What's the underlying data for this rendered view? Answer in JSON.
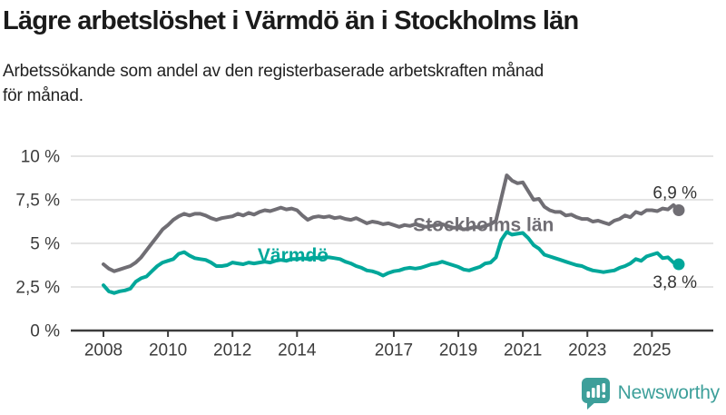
{
  "chart_data": {
    "type": "line",
    "title": "Lägre arbetslöshet i Värmdö än i Stockholms län",
    "subtitle_lines": [
      "Arbetssökande som andel av den registerbaserade arbetskraften månad",
      "för månad."
    ],
    "x_unit": "months",
    "x_start": "2008-01",
    "x_step_months": 2,
    "x_end": "2025-11",
    "ylim": [
      0,
      10
    ],
    "grid": true,
    "legend": "inline-labels",
    "colors": {
      "grid": "#dcdcdc",
      "axis": "#3c3c3c",
      "tick_text": "#3c3c3c",
      "value_label_text": "#333333"
    },
    "x_ticks": [
      {
        "year": 2008,
        "label": "2008"
      },
      {
        "year": 2010,
        "label": "2010"
      },
      {
        "year": 2012,
        "label": "2012"
      },
      {
        "year": 2014,
        "label": "2014"
      },
      {
        "year": 2017,
        "label": "2017"
      },
      {
        "year": 2019,
        "label": "2019"
      },
      {
        "year": 2021,
        "label": "2021"
      },
      {
        "year": 2023,
        "label": "2023"
      },
      {
        "year": 2025,
        "label": "2025"
      }
    ],
    "y_ticks": [
      {
        "value": 0,
        "label": "0 %"
      },
      {
        "value": 2.5,
        "label": "2,5 %"
      },
      {
        "value": 5,
        "label": "5 %"
      },
      {
        "value": 7.5,
        "label": "7,5 %"
      },
      {
        "value": 10,
        "label": "10 %"
      }
    ],
    "series": [
      {
        "name": "Stockholms län",
        "color": "#706e74",
        "end_label": "6,9 %",
        "end_label_side": "above",
        "label_anchor": {
          "year": 2019.78,
          "value": 5.7,
          "align": "middle"
        },
        "values": [
          3.8,
          3.55,
          3.4,
          3.5,
          3.6,
          3.7,
          3.9,
          4.2,
          4.6,
          5.0,
          5.4,
          5.8,
          6.05,
          6.35,
          6.55,
          6.7,
          6.6,
          6.7,
          6.7,
          6.6,
          6.45,
          6.35,
          6.45,
          6.5,
          6.55,
          6.7,
          6.6,
          6.75,
          6.65,
          6.8,
          6.9,
          6.85,
          6.95,
          7.05,
          6.95,
          7.0,
          6.9,
          6.6,
          6.35,
          6.5,
          6.55,
          6.5,
          6.55,
          6.45,
          6.5,
          6.4,
          6.35,
          6.45,
          6.3,
          6.15,
          6.25,
          6.2,
          6.1,
          6.15,
          6.05,
          5.95,
          6.05,
          6.0,
          6.1,
          6.0,
          5.95,
          6.0,
          6.05,
          6.1,
          6.0,
          5.9,
          5.9,
          5.8,
          5.85,
          5.95,
          5.9,
          6.0,
          6.1,
          6.3,
          7.6,
          8.9,
          8.6,
          8.45,
          8.5,
          8.0,
          7.5,
          7.55,
          7.1,
          6.9,
          6.8,
          6.8,
          6.6,
          6.65,
          6.5,
          6.4,
          6.4,
          6.25,
          6.3,
          6.2,
          6.1,
          6.3,
          6.4,
          6.6,
          6.5,
          6.8,
          6.7,
          6.9,
          6.9,
          6.85,
          7.0,
          6.95,
          7.2,
          6.9
        ]
      },
      {
        "name": "Värmdö",
        "color": "#00a79a",
        "end_label": "3,8 %",
        "end_label_side": "below",
        "label_anchor": {
          "year": 2012.78,
          "value": 3.95,
          "align": "start"
        },
        "values": [
          2.6,
          2.25,
          2.15,
          2.25,
          2.3,
          2.4,
          2.8,
          3.0,
          3.1,
          3.4,
          3.7,
          3.9,
          4.0,
          4.1,
          4.4,
          4.5,
          4.3,
          4.15,
          4.1,
          4.05,
          3.9,
          3.7,
          3.7,
          3.75,
          3.9,
          3.85,
          3.8,
          3.9,
          3.85,
          3.9,
          3.95,
          3.9,
          4.0,
          4.05,
          4.0,
          4.1,
          4.1,
          4.15,
          4.1,
          4.2,
          4.15,
          4.2,
          4.2,
          4.15,
          4.1,
          3.95,
          3.85,
          3.7,
          3.6,
          3.45,
          3.4,
          3.3,
          3.15,
          3.3,
          3.4,
          3.45,
          3.55,
          3.6,
          3.55,
          3.6,
          3.7,
          3.8,
          3.85,
          3.95,
          3.85,
          3.75,
          3.65,
          3.5,
          3.45,
          3.55,
          3.65,
          3.85,
          3.9,
          4.2,
          5.2,
          5.65,
          5.5,
          5.55,
          5.6,
          5.3,
          4.9,
          4.7,
          4.35,
          4.25,
          4.15,
          4.05,
          3.95,
          3.85,
          3.75,
          3.7,
          3.55,
          3.45,
          3.4,
          3.35,
          3.4,
          3.45,
          3.6,
          3.7,
          3.85,
          4.1,
          4.0,
          4.25,
          4.35,
          4.45,
          4.15,
          4.2,
          3.9,
          3.8
        ]
      }
    ]
  },
  "branding": {
    "name": "Newsworthy",
    "color": "#3d9f9a",
    "icon": "bar-chart-speech-bubble-icon"
  }
}
